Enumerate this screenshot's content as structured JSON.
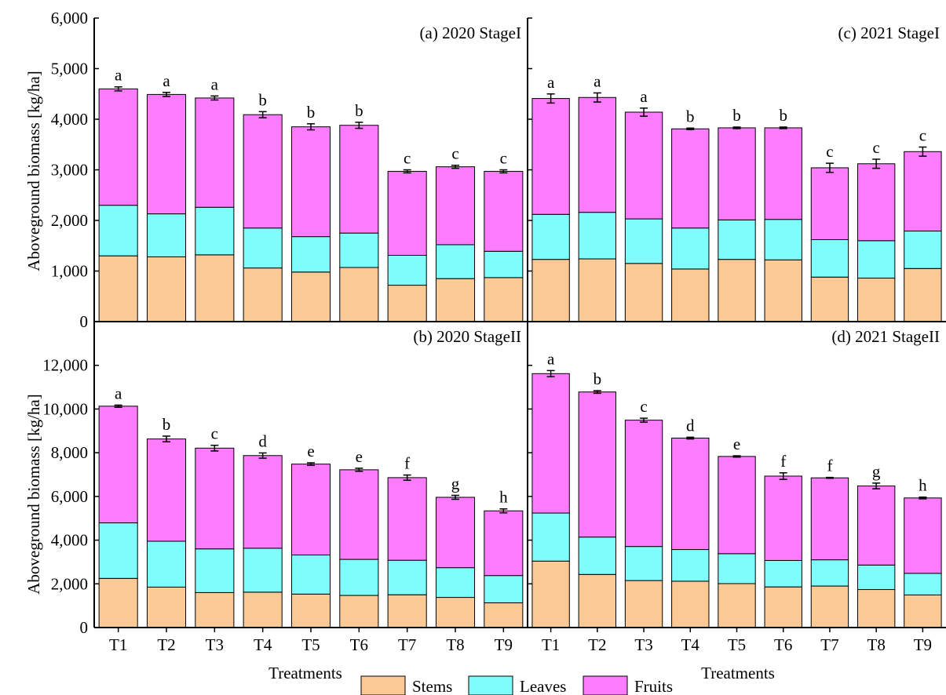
{
  "colors": {
    "Stems": "#fbc994",
    "Leaves": "#7ffdfd",
    "Fruits": "#fd7bfd",
    "outline": "#000000"
  },
  "shared_text": {
    "xlabel": "Treatments",
    "ylabel": "Aboveground biomass [kg/ha]",
    "legend": [
      "Stems",
      "Leaves",
      "Fruits"
    ]
  },
  "chart_data": [
    {
      "type": "bar",
      "stacked": true,
      "title": "(a) 2020 StageI",
      "categories": [
        "T1",
        "T2",
        "T3",
        "T4",
        "T5",
        "T6",
        "T7",
        "T8",
        "T9"
      ],
      "ylim": [
        0,
        6000
      ],
      "yticks": [
        0,
        1000,
        2000,
        3000,
        4000,
        5000,
        6000
      ],
      "ytick_labels": [
        "0",
        "1,000",
        "2,000",
        "3,000",
        "4,000",
        "5,000",
        "6,000"
      ],
      "series": [
        {
          "name": "Stems",
          "values": [
            1300,
            1280,
            1320,
            1060,
            980,
            1070,
            720,
            850,
            870
          ]
        },
        {
          "name": "Leaves",
          "values": [
            1000,
            850,
            940,
            790,
            700,
            680,
            590,
            670,
            520
          ]
        },
        {
          "name": "Fruits",
          "values": [
            2300,
            2360,
            2160,
            2240,
            2170,
            2130,
            1660,
            1540,
            1580
          ]
        }
      ],
      "errors": [
        40,
        40,
        40,
        60,
        60,
        60,
        30,
        30,
        30
      ],
      "letters": [
        "a",
        "a",
        "a",
        "b",
        "b",
        "b",
        "c",
        "c",
        "c"
      ]
    },
    {
      "type": "bar",
      "stacked": true,
      "title": "(c) 2021 StageI",
      "categories": [
        "T1",
        "T2",
        "T3",
        "T4",
        "T5",
        "T6",
        "T7",
        "T8",
        "T9"
      ],
      "ylim": [
        0,
        6000
      ],
      "yticks": [
        0,
        1000,
        2000,
        3000,
        4000,
        5000,
        6000
      ],
      "ytick_labels": [],
      "series": [
        {
          "name": "Stems",
          "values": [
            1230,
            1240,
            1150,
            1040,
            1230,
            1220,
            880,
            860,
            1050
          ]
        },
        {
          "name": "Leaves",
          "values": [
            890,
            920,
            880,
            810,
            780,
            800,
            740,
            740,
            740
          ]
        },
        {
          "name": "Fruits",
          "values": [
            2290,
            2270,
            2110,
            1960,
            1820,
            1810,
            1420,
            1520,
            1570
          ]
        }
      ],
      "errors": [
        90,
        90,
        80,
        15,
        15,
        15,
        90,
        90,
        90
      ],
      "letters": [
        "a",
        "a",
        "a",
        "b",
        "b",
        "b",
        "c",
        "c",
        "c"
      ]
    },
    {
      "type": "bar",
      "stacked": true,
      "title": "(b) 2020 StageII",
      "categories": [
        "T1",
        "T2",
        "T3",
        "T4",
        "T5",
        "T6",
        "T7",
        "T8",
        "T9"
      ],
      "ylim": [
        0,
        14000
      ],
      "yticks": [
        0,
        2000,
        4000,
        6000,
        8000,
        10000,
        12000
      ],
      "ytick_labels": [
        "0",
        "2,000",
        "4,000",
        "6,000",
        "8,000",
        "10,000",
        "12,000"
      ],
      "series": [
        {
          "name": "Stems",
          "values": [
            2250,
            1850,
            1600,
            1620,
            1530,
            1470,
            1500,
            1380,
            1130
          ]
        },
        {
          "name": "Leaves",
          "values": [
            2540,
            2100,
            2000,
            2010,
            1790,
            1650,
            1580,
            1360,
            1250
          ]
        },
        {
          "name": "Fruits",
          "values": [
            5340,
            4680,
            4610,
            4240,
            4160,
            4100,
            3780,
            3220,
            2960
          ]
        }
      ],
      "errors": [
        50,
        130,
        130,
        120,
        60,
        70,
        120,
        90,
        90
      ],
      "letters": [
        "a",
        "b",
        "c",
        "d",
        "e",
        "e",
        "f",
        "g",
        "h"
      ]
    },
    {
      "type": "bar",
      "stacked": true,
      "title": "(d) 2021 StageII",
      "categories": [
        "T1",
        "T2",
        "T3",
        "T4",
        "T5",
        "T6",
        "T7",
        "T8",
        "T9"
      ],
      "ylim": [
        0,
        14000
      ],
      "yticks": [
        0,
        2000,
        4000,
        6000,
        8000,
        10000,
        12000
      ],
      "ytick_labels": [],
      "series": [
        {
          "name": "Stems",
          "values": [
            3040,
            2430,
            2150,
            2120,
            2010,
            1860,
            1900,
            1740,
            1490
          ]
        },
        {
          "name": "Leaves",
          "values": [
            2200,
            1710,
            1560,
            1450,
            1370,
            1210,
            1200,
            1120,
            990
          ]
        },
        {
          "name": "Fruits",
          "values": [
            6380,
            6640,
            5780,
            5100,
            4450,
            3860,
            3750,
            3620,
            3450
          ]
        }
      ],
      "errors": [
        140,
        60,
        90,
        40,
        30,
        150,
        20,
        130,
        40
      ],
      "letters": [
        "a",
        "b",
        "c",
        "d",
        "e",
        "f",
        "f",
        "g",
        "h"
      ]
    }
  ]
}
